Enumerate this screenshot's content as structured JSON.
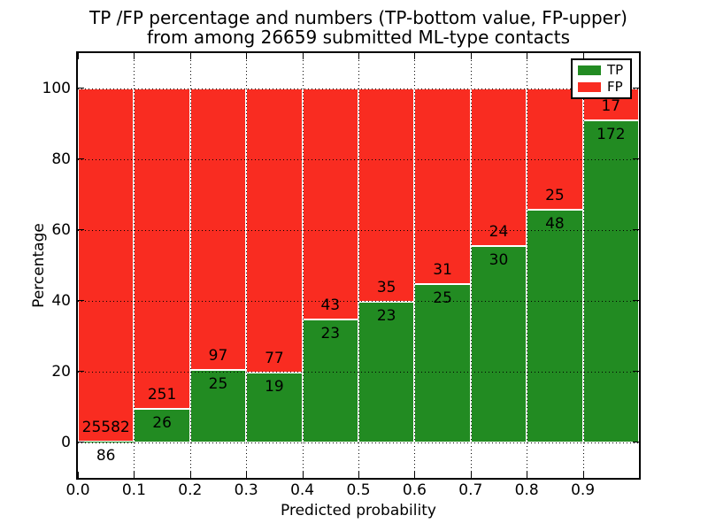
{
  "figure": {
    "title_line1": "TP /FP percentage and numbers (TP-bottom value, FP-upper)",
    "title_line2": "from among 26659 submitted ML-type contacts"
  },
  "axes": {
    "xlabel": "Predicted probability",
    "ylabel": "Percentage",
    "xtick_labels": [
      "0.0",
      "0.1",
      "0.2",
      "0.3",
      "0.4",
      "0.5",
      "0.6",
      "0.7",
      "0.8",
      "0.9"
    ],
    "ytick_labels": [
      "0",
      "20",
      "40",
      "60",
      "80",
      "100"
    ],
    "ytick_values": [
      0,
      20,
      40,
      60,
      80,
      100
    ],
    "xlim": [
      0.0,
      1.0
    ],
    "ylim": [
      -10,
      110
    ],
    "grid_style": "dotted"
  },
  "legend": {
    "position": "upper right",
    "items": [
      {
        "label": "TP",
        "color": "#228b22"
      },
      {
        "label": "FP",
        "color": "#f92c21"
      }
    ]
  },
  "chart_data": {
    "type": "bar",
    "stacked": true,
    "normalized_to_percent": true,
    "title": "TP /FP percentage and numbers (TP-bottom value, FP-upper) from among 26659 submitted ML-type contacts",
    "xlabel": "Predicted probability",
    "ylabel": "Percentage",
    "xlim": [
      0.0,
      1.0
    ],
    "ylim": [
      -10,
      110
    ],
    "bin_width": 0.1,
    "bin_starts": [
      0.0,
      0.1,
      0.2,
      0.3,
      0.4,
      0.5,
      0.6,
      0.7,
      0.8,
      0.9
    ],
    "categories": [
      "0.0-0.1",
      "0.1-0.2",
      "0.2-0.3",
      "0.3-0.4",
      "0.4-0.5",
      "0.5-0.6",
      "0.6-0.7",
      "0.7-0.8",
      "0.8-0.9",
      "0.9-1.0"
    ],
    "series": [
      {
        "name": "TP",
        "color": "#228b22",
        "counts": [
          86,
          26,
          25,
          19,
          23,
          23,
          25,
          30,
          48,
          172
        ],
        "percent": [
          0.34,
          9.39,
          20.49,
          19.79,
          34.85,
          39.66,
          44.64,
          55.56,
          65.75,
          91.01
        ]
      },
      {
        "name": "FP",
        "color": "#f92c21",
        "counts": [
          25582,
          251,
          97,
          77,
          43,
          35,
          31,
          24,
          25,
          17
        ],
        "percent": [
          99.66,
          90.61,
          79.51,
          80.21,
          65.15,
          60.34,
          55.36,
          44.44,
          34.25,
          8.99
        ]
      }
    ],
    "total_submitted": 26659,
    "legend_position": "upper right",
    "grid": true
  }
}
